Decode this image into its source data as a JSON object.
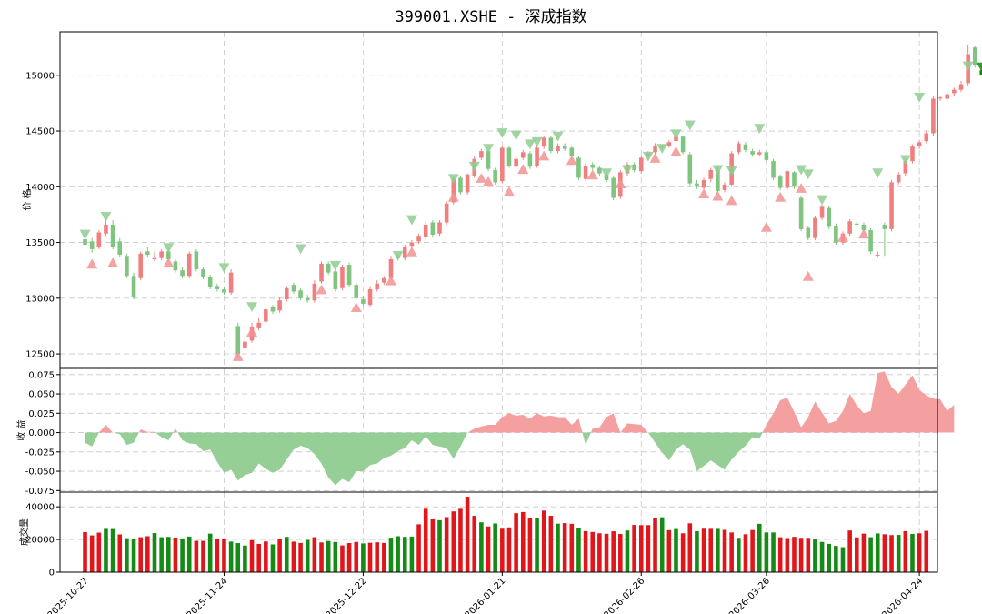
{
  "title": "399001.XSHE - 深成指数",
  "colors": {
    "up": "#f08080",
    "down": "#7fc47f",
    "up_area": "#f4a0a0",
    "down_area": "#95cf95",
    "vol_up": "#e0161b",
    "vol_down": "#158a15",
    "buy_marker": "#f29393",
    "sell_marker": "#8fcc8f",
    "last_marker": "#0a8a0a",
    "grid": "#c8c8c8"
  },
  "chart_data": [
    {
      "type": "candlestick",
      "name": "price_panel",
      "ylabel": "价 格",
      "ylim": [
        12370,
        15390
      ],
      "yticks": [
        12500,
        13000,
        13500,
        14000,
        14500,
        15000
      ],
      "xticks": [
        "2025-10-27",
        "2025-11-24",
        "2025-12-22",
        "2026-01-21",
        "2026-02-26",
        "2026-03-26",
        "2026-04-24"
      ],
      "xtick_positions": [
        0,
        20,
        40,
        60,
        80,
        98,
        120
      ],
      "x_range": [
        -3.6,
        122.6
      ],
      "close": [
        13480,
        13440,
        13590,
        13660,
        13460,
        13390,
        13200,
        13010,
        13400,
        13390,
        13360,
        13420,
        13350,
        13250,
        13200,
        13400,
        13260,
        13190,
        13100,
        13080,
        13050,
        13230,
        12500,
        12610,
        12740,
        12780,
        12900,
        12880,
        12980,
        13090,
        13060,
        13000,
        12980,
        13130,
        13310,
        13230,
        13080,
        13280,
        13120,
        13000,
        12950,
        13080,
        13130,
        13180,
        13350,
        13360,
        13460,
        13500,
        13560,
        13660,
        13570,
        13680,
        13850,
        14070,
        13950,
        14110,
        14250,
        14320,
        14160,
        14040,
        14350,
        14190,
        14250,
        14310,
        14180,
        14350,
        14440,
        14320,
        14370,
        14340,
        14280,
        14080,
        14190,
        14170,
        14120,
        14060,
        13900,
        14130,
        14200,
        14150,
        14260,
        14300,
        14370,
        14350,
        14400,
        14450,
        14310,
        14030,
        14000,
        14060,
        14150,
        13960,
        14020,
        14300,
        14390,
        14330,
        14290,
        14310,
        14240,
        14080,
        13990,
        14140,
        14000,
        13620,
        13540,
        13720,
        13820,
        13640,
        13500,
        13580,
        13690,
        13660,
        13610,
        13420,
        13390,
        13620,
        14040,
        14110,
        14230,
        14360,
        14400,
        14480,
        14790,
        14800,
        14830,
        14870,
        14920,
        15190,
        15090
      ],
      "open": [
        13530,
        13510,
        13460,
        13580,
        13660,
        13510,
        13380,
        13200,
        13180,
        13420,
        13350,
        13360,
        13420,
        13330,
        13250,
        13200,
        13420,
        13260,
        13190,
        13110,
        13080,
        13050,
        12750,
        12550,
        12620,
        12730,
        12790,
        12920,
        12890,
        12990,
        13120,
        13070,
        13000,
        12980,
        13150,
        13310,
        13240,
        13090,
        13300,
        13120,
        12990,
        12940,
        13080,
        13140,
        13180,
        13380,
        13360,
        13470,
        13510,
        13550,
        13680,
        13580,
        13680,
        13860,
        14080,
        13950,
        14100,
        14260,
        14320,
        14150,
        14050,
        14350,
        14180,
        14260,
        14300,
        14190,
        14360,
        14440,
        14320,
        14370,
        14350,
        14260,
        14070,
        14200,
        14170,
        14110,
        14080,
        13910,
        14120,
        14200,
        14140,
        14270,
        14310,
        14360,
        14370,
        14410,
        14450,
        14290,
        14030,
        13990,
        14070,
        14150,
        13970,
        14020,
        14310,
        14380,
        14320,
        14290,
        14310,
        14230,
        14090,
        13990,
        14130,
        13900,
        13630,
        13540,
        13720,
        13810,
        13650,
        13500,
        13580,
        13670,
        13660,
        13610,
        13390,
        13660,
        13620,
        14040,
        14120,
        14230,
        14370,
        14410,
        14480,
        14800,
        14790,
        14840,
        14870,
        14930,
        15250
      ],
      "high": [
        13560,
        13540,
        13610,
        13700,
        13700,
        13540,
        13400,
        13230,
        13420,
        13460,
        13420,
        13440,
        13450,
        13350,
        13280,
        13420,
        13440,
        13280,
        13210,
        13130,
        13100,
        13260,
        12780,
        12650,
        12780,
        12820,
        12930,
        12940,
        13010,
        13110,
        13140,
        13090,
        13030,
        13160,
        13330,
        13330,
        13260,
        13300,
        13320,
        13140,
        13020,
        13110,
        13160,
        13200,
        13380,
        13400,
        13480,
        13520,
        13580,
        13690,
        13700,
        13700,
        13870,
        14090,
        14100,
        14120,
        14270,
        14340,
        14340,
        14170,
        14370,
        14370,
        14270,
        14330,
        14320,
        14370,
        14460,
        14460,
        14390,
        14390,
        14370,
        14280,
        14210,
        14220,
        14190,
        14130,
        14090,
        14150,
        14220,
        14220,
        14280,
        14320,
        14390,
        14380,
        14420,
        14470,
        14460,
        14310,
        14060,
        14080,
        14170,
        14170,
        14040,
        14320,
        14410,
        14400,
        14340,
        14330,
        14330,
        14250,
        14110,
        14160,
        14140,
        13920,
        13650,
        13740,
        13840,
        13830,
        13670,
        13600,
        13710,
        13690,
        13680,
        13630,
        13420,
        13680,
        14060,
        14130,
        14250,
        14380,
        14420,
        14500,
        14810,
        14820,
        14850,
        14890,
        14950,
        15270,
        15260
      ],
      "low": [
        13450,
        13410,
        13440,
        13560,
        13440,
        13370,
        13180,
        12990,
        13160,
        13370,
        13330,
        13340,
        13330,
        13230,
        13180,
        13180,
        13240,
        13170,
        13080,
        13060,
        13030,
        13030,
        12470,
        12540,
        12600,
        12710,
        12770,
        12860,
        12870,
        12970,
        13040,
        12980,
        12960,
        12960,
        13130,
        13210,
        13060,
        13070,
        13100,
        12980,
        12930,
        12920,
        13060,
        13120,
        13160,
        13340,
        13340,
        13450,
        13490,
        13530,
        13550,
        13560,
        13660,
        13840,
        13930,
        13930,
        14080,
        14240,
        14140,
        14020,
        14030,
        14170,
        14160,
        14240,
        14160,
        14170,
        14340,
        14300,
        14300,
        14320,
        14260,
        14060,
        14050,
        14150,
        14100,
        14040,
        13880,
        13890,
        14100,
        14130,
        14120,
        14250,
        14290,
        14330,
        14350,
        14390,
        14290,
        14010,
        13980,
        13970,
        14040,
        13940,
        13950,
        14000,
        14290,
        14310,
        14270,
        14270,
        14220,
        14060,
        13970,
        13970,
        13980,
        13600,
        13520,
        13520,
        13700,
        13620,
        13480,
        13480,
        13560,
        13640,
        13590,
        13400,
        13370,
        13380,
        13600,
        14020,
        14100,
        14210,
        14340,
        14390,
        14460,
        14770,
        14770,
        14810,
        14850,
        14910,
        15070
      ],
      "buy_signals": [
        [
          1,
          13310
        ],
        [
          4,
          13320
        ],
        [
          12,
          13320
        ],
        [
          22,
          12480
        ],
        [
          24,
          12700
        ],
        [
          34,
          13080
        ],
        [
          39,
          12920
        ],
        [
          44,
          13160
        ],
        [
          47,
          13420
        ],
        [
          53,
          13910
        ],
        [
          57,
          14080
        ],
        [
          58,
          14050
        ],
        [
          61,
          13960
        ],
        [
          63,
          14160
        ],
        [
          66,
          14280
        ],
        [
          70,
          14240
        ],
        [
          73,
          14110
        ],
        [
          77,
          14030
        ],
        [
          82,
          14260
        ],
        [
          85,
          14320
        ],
        [
          89,
          13940
        ],
        [
          91,
          13920
        ],
        [
          93,
          13880
        ],
        [
          98,
          13640
        ],
        [
          100,
          13910
        ],
        [
          103,
          13990
        ],
        [
          104,
          13200
        ],
        [
          109,
          13550
        ],
        [
          112,
          13580
        ]
      ],
      "sell_signals": [
        [
          0,
          13570
        ],
        [
          3,
          13730
        ],
        [
          12,
          13450
        ],
        [
          20,
          13270
        ],
        [
          24,
          12920
        ],
        [
          31,
          13440
        ],
        [
          36,
          13290
        ],
        [
          45,
          13380
        ],
        [
          47,
          13700
        ],
        [
          53,
          14070
        ],
        [
          56,
          14180
        ],
        [
          58,
          14340
        ],
        [
          60,
          14480
        ],
        [
          62,
          14460
        ],
        [
          64,
          14380
        ],
        [
          65,
          14400
        ],
        [
          68,
          14450
        ],
        [
          75,
          14120
        ],
        [
          78,
          14150
        ],
        [
          81,
          14270
        ],
        [
          83,
          14340
        ],
        [
          85,
          14470
        ],
        [
          87,
          14550
        ],
        [
          91,
          14150
        ],
        [
          93,
          14140
        ],
        [
          97,
          14520
        ],
        [
          103,
          14150
        ],
        [
          104,
          14110
        ],
        [
          106,
          13880
        ],
        [
          114,
          14120
        ],
        [
          118,
          14240
        ],
        [
          120,
          14800
        ],
        [
          127,
          15080
        ]
      ],
      "last_signal": [
        129,
        15070
      ]
    },
    {
      "type": "area",
      "name": "returns_panel",
      "ylabel": "收 益",
      "ylim": [
        -0.077,
        0.083
      ],
      "yticks": [
        -0.075,
        -0.05,
        -0.025,
        0.0,
        0.025,
        0.05,
        0.075
      ],
      "ytick_labels": [
        "-0.075",
        "-0.050",
        "-0.025",
        "0.000",
        "0.025",
        "0.050",
        "0.075"
      ],
      "values": [
        -0.013,
        -0.018,
        0.0,
        0.01,
        0.0,
        -0.002,
        -0.016,
        -0.013,
        0.004,
        0.001,
        0.001,
        -0.006,
        -0.01,
        0.005,
        -0.01,
        -0.014,
        -0.015,
        -0.024,
        -0.022,
        -0.038,
        -0.052,
        -0.048,
        -0.062,
        -0.055,
        -0.052,
        -0.04,
        -0.047,
        -0.052,
        -0.048,
        -0.035,
        -0.022,
        -0.017,
        -0.02,
        -0.028,
        -0.04,
        -0.058,
        -0.068,
        -0.06,
        -0.064,
        -0.05,
        -0.05,
        -0.042,
        -0.04,
        -0.033,
        -0.03,
        -0.024,
        -0.02,
        -0.01,
        -0.016,
        -0.005,
        -0.016,
        -0.018,
        -0.02,
        -0.034,
        -0.018,
        0.0,
        0.005,
        0.008,
        0.01,
        0.01,
        0.02,
        0.025,
        0.022,
        0.023,
        0.018,
        0.025,
        0.021,
        0.022,
        0.02,
        0.02,
        0.01,
        0.018,
        -0.016,
        0.005,
        0.007,
        0.02,
        0.025,
        0.0,
        0.012,
        0.011,
        0.01,
        0.0,
        -0.013,
        -0.026,
        -0.036,
        -0.022,
        -0.015,
        -0.022,
        -0.05,
        -0.043,
        -0.036,
        -0.042,
        -0.048,
        -0.035,
        -0.025,
        -0.017,
        -0.006,
        -0.008,
        0.01,
        0.025,
        0.042,
        0.045,
        0.027,
        0.007,
        0.02,
        0.04,
        0.026,
        0.012,
        0.015,
        0.028,
        0.05,
        0.035,
        0.025,
        0.028,
        0.077,
        0.079,
        0.059,
        0.05,
        0.062,
        0.074,
        0.055,
        0.048,
        0.044,
        0.043,
        0.028,
        0.036
      ]
    },
    {
      "type": "bar",
      "name": "volume_panel",
      "ylabel": "成交量",
      "ylim": [
        0,
        49000
      ],
      "yticks": [
        0,
        20000,
        40000
      ],
      "ytick_labels": [
        "0",
        "20000",
        "40000"
      ],
      "values": [
        24500,
        22500,
        24200,
        26500,
        26400,
        23100,
        20800,
        20400,
        21400,
        22000,
        23900,
        21400,
        21600,
        21200,
        20700,
        21800,
        19200,
        19200,
        23600,
        20400,
        20200,
        18700,
        17800,
        16300,
        19600,
        17300,
        18800,
        17000,
        20200,
        21600,
        18700,
        17900,
        19700,
        21400,
        18200,
        19100,
        18500,
        16400,
        17800,
        18500,
        17600,
        18000,
        18300,
        17900,
        21100,
        22000,
        21600,
        21800,
        29300,
        38800,
        32300,
        31800,
        33700,
        37200,
        38800,
        46200,
        34500,
        30500,
        28000,
        29800,
        26600,
        27400,
        36100,
        36800,
        33400,
        32900,
        37700,
        34500,
        29700,
        30000,
        29600,
        27100,
        25100,
        24600,
        23800,
        23500,
        25000,
        23400,
        25500,
        28900,
        28800,
        28800,
        33300,
        33600,
        25700,
        26400,
        23800,
        29900,
        25100,
        26600,
        26500,
        26500,
        25900,
        24300,
        21000,
        23200,
        25800,
        29600,
        24300,
        24300,
        21400,
        20900,
        21600,
        21000,
        21000,
        20000,
        18500,
        17300,
        16100,
        15300,
        25500,
        21300,
        23600,
        21400,
        23700,
        23200,
        22700,
        22800,
        25100,
        23400,
        23800,
        25300
      ],
      "up": [
        1,
        1,
        1,
        0,
        0,
        1,
        0,
        0,
        1,
        1,
        0,
        0,
        0,
        1,
        0,
        0,
        1,
        1,
        0,
        1,
        1,
        0,
        0,
        0,
        1,
        1,
        1,
        0,
        1,
        0,
        1,
        1,
        0,
        1,
        1,
        0,
        0,
        1,
        1,
        1,
        0,
        1,
        1,
        1,
        0,
        0,
        0,
        0,
        1,
        1,
        1,
        0,
        1,
        1,
        1,
        1,
        1,
        0,
        1,
        0,
        1,
        1,
        1,
        1,
        1,
        0,
        1,
        1,
        0,
        1,
        1,
        0,
        1,
        1,
        1,
        1,
        1,
        1,
        0,
        1,
        1,
        1,
        1,
        0,
        1,
        0,
        1,
        1,
        0,
        1,
        1,
        0,
        1,
        1,
        0,
        1,
        1,
        0,
        0,
        0,
        1,
        1,
        1,
        1,
        1,
        0,
        0,
        0,
        0,
        0,
        1,
        1,
        1,
        0,
        0,
        1,
        1,
        0,
        1,
        0,
        1,
        1,
        0,
        1,
        0,
        1
      ]
    }
  ]
}
